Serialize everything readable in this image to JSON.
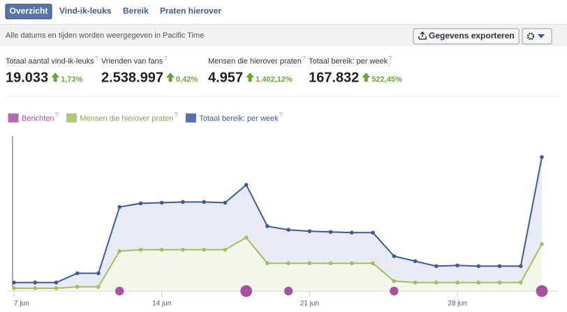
{
  "tabs": [
    "Overzicht",
    "Vind-ik-leuks",
    "Bereik",
    "Praten hierover"
  ],
  "timezone_note": "Alle datums en tijden worden weergegeven in Pacific Time",
  "export_button": "Gegevens exporteren",
  "help_mark": "?",
  "stats": [
    {
      "label": "Totaal aantal vind-ik-leuks",
      "value": "19.033",
      "change": "1,73%"
    },
    {
      "label": "Vrienden van fans",
      "value": "2.538.997",
      "change": "0,42%"
    },
    {
      "label": "Mensen die hierover praten",
      "value": "4.957",
      "change": "1.402,12%"
    },
    {
      "label": "Totaal bereik: per week",
      "value": "167.832",
      "change": "522,45%"
    }
  ],
  "chart_data": {
    "type": "line",
    "categories": [
      "7 jun",
      null,
      null,
      null,
      null,
      null,
      null,
      "14 jun",
      null,
      null,
      null,
      null,
      null,
      null,
      "21 jun",
      null,
      null,
      null,
      null,
      null,
      null,
      "28 jun",
      null,
      null,
      null,
      null
    ],
    "series": [
      {
        "name": "Berichten",
        "color": "#a8519f",
        "values": [
          null,
          null,
          null,
          null,
          null,
          1,
          null,
          null,
          null,
          null,
          null,
          2,
          null,
          1,
          null,
          null,
          null,
          null,
          1,
          null,
          null,
          null,
          null,
          null,
          null,
          2
        ]
      },
      {
        "name": "Mensen die hierover praten",
        "color": "#a3bd5f",
        "values": [
          2,
          2,
          2,
          4,
          4,
          54,
          56,
          56,
          56,
          56,
          56,
          73,
          37,
          37,
          37,
          37,
          37,
          37,
          12,
          10,
          10,
          10,
          10,
          10,
          10,
          64
        ]
      },
      {
        "name": "Totaal bereik: per week",
        "color": "#3c5a99",
        "values": [
          10,
          10,
          10,
          23,
          23,
          116,
          121,
          122,
          123,
          123,
          122,
          147,
          89,
          84,
          82,
          81,
          80,
          80,
          47,
          40,
          33,
          34,
          33,
          33,
          33,
          186
        ]
      }
    ]
  }
}
